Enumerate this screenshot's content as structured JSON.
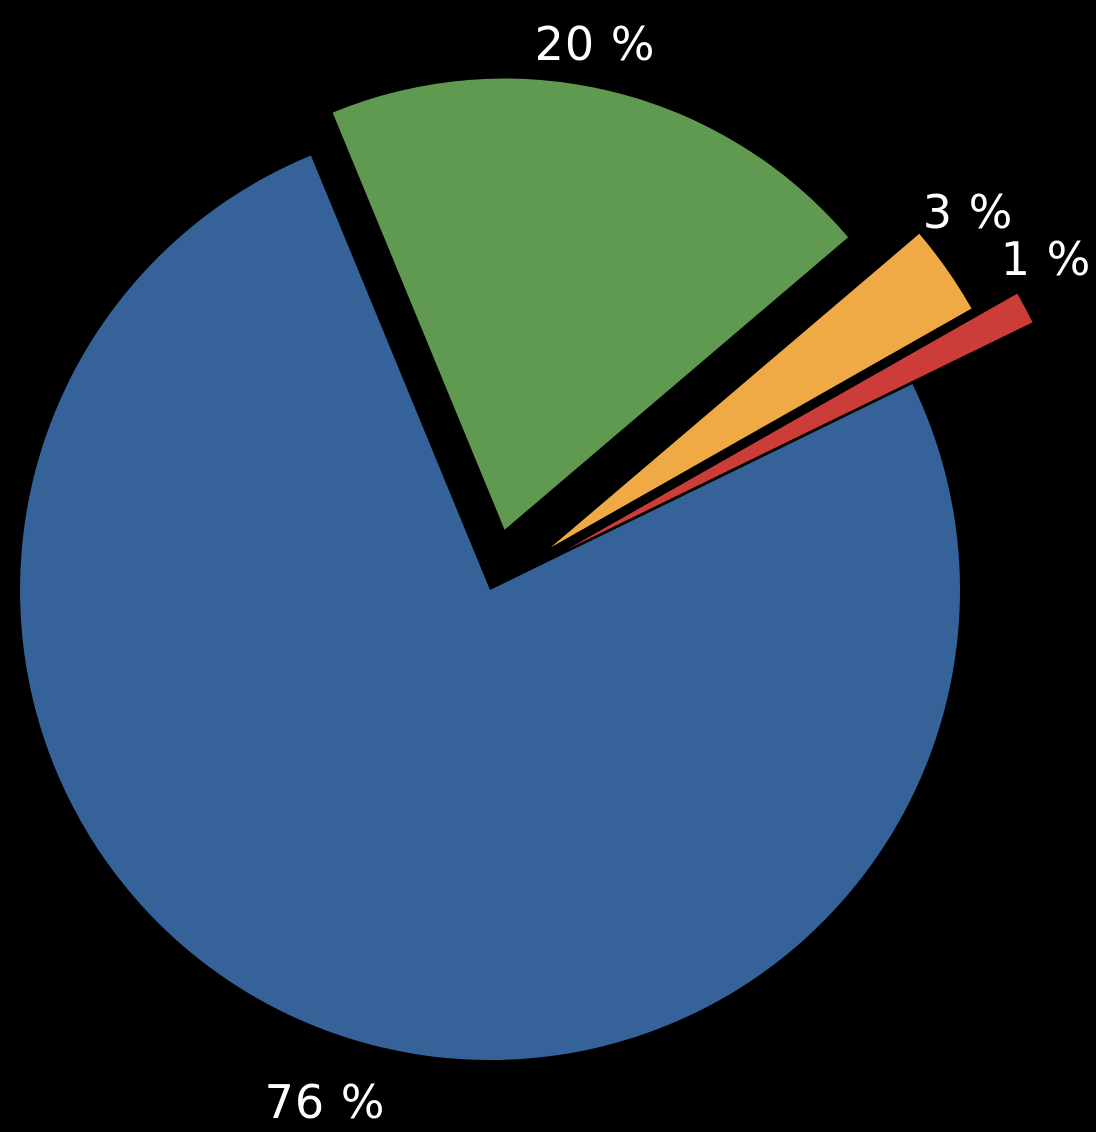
{
  "chart_data": {
    "type": "pie",
    "title": "",
    "slices": [
      {
        "label": "76 %",
        "value": 76,
        "color": "#356298"
      },
      {
        "label": "20 %",
        "value": 20,
        "color": "#5f9a50"
      },
      {
        "label": "3 %",
        "value": 3,
        "color": "#efaa45"
      },
      {
        "label": "1 %",
        "value": 1,
        "color": "#cc3d3a"
      }
    ],
    "background": "#000000",
    "legend": "none"
  }
}
